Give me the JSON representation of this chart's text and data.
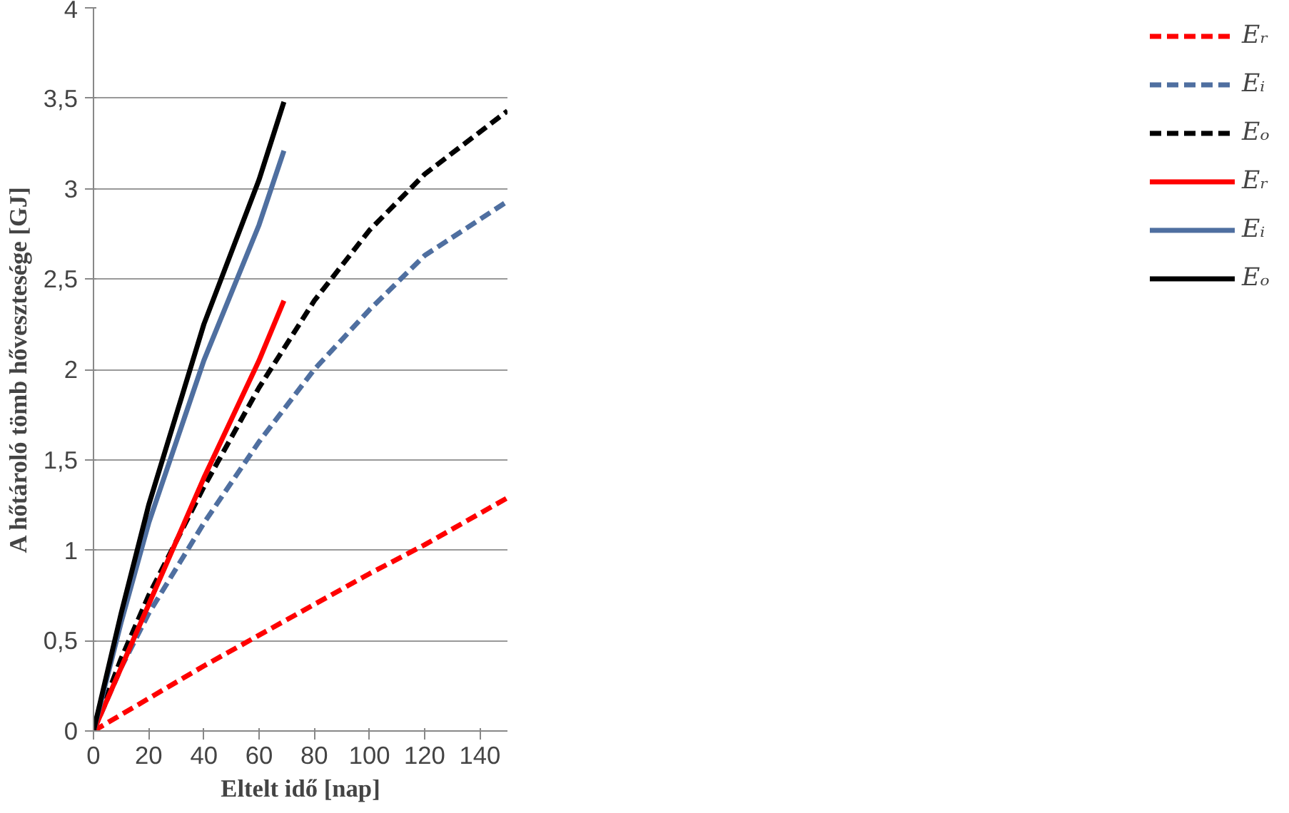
{
  "chart_data": {
    "type": "line",
    "xlabel": "Eltelt idő [nap]",
    "ylabel": "A hőtároló tömb hővesztesége [GJ]",
    "xlim": [
      0,
      150
    ],
    "xticks": [
      0,
      20,
      40,
      60,
      80,
      100,
      120,
      140
    ],
    "ylim": [
      0,
      4
    ],
    "yticks": [
      0,
      {
        "value": 0.5,
        "label": "0,5"
      },
      1,
      {
        "value": 1.5,
        "label": "1,5"
      },
      2,
      {
        "value": 2.5,
        "label": "2,5"
      },
      3,
      {
        "value": 3.5,
        "label": "3,5"
      },
      4
    ],
    "grid": "y",
    "legend": "right",
    "marker": "none",
    "series": [
      {
        "name": "Eᵣ",
        "color": "#ff0000",
        "line_style": "dashed",
        "x": [
          0,
          20,
          40,
          60,
          80,
          100,
          120,
          150
        ],
        "values": [
          0,
          0.18,
          0.36,
          0.53,
          0.7,
          0.87,
          1.03,
          1.29
        ]
      },
      {
        "name": "Eᵢ",
        "color": "#4f6fa0",
        "line_style": "dashed",
        "x": [
          0,
          10,
          20,
          40,
          60,
          80,
          100,
          120,
          150
        ],
        "values": [
          0,
          0.35,
          0.65,
          1.15,
          1.6,
          2.0,
          2.33,
          2.63,
          2.93
        ]
      },
      {
        "name": "Eₒ",
        "color": "#000000",
        "line_style": "dashed",
        "x": [
          0,
          10,
          20,
          40,
          60,
          80,
          100,
          120,
          150
        ],
        "values": [
          0,
          0.4,
          0.75,
          1.35,
          1.9,
          2.38,
          2.77,
          3.08,
          3.43
        ]
      },
      {
        "name": "Eᵣ",
        "color": "#ff0000",
        "line_style": "solid",
        "x": [
          0,
          20,
          40,
          60,
          69
        ],
        "values": [
          0,
          0.7,
          1.4,
          2.05,
          2.38
        ]
      },
      {
        "name": "Eᵢ",
        "color": "#4f6fa0",
        "line_style": "solid",
        "x": [
          0,
          10,
          20,
          40,
          60,
          69
        ],
        "values": [
          0,
          0.6,
          1.15,
          2.05,
          2.8,
          3.21
        ]
      },
      {
        "name": "Eₒ",
        "color": "#000000",
        "line_style": "solid",
        "x": [
          0,
          10,
          20,
          40,
          60,
          69
        ],
        "values": [
          0,
          0.65,
          1.25,
          2.25,
          3.05,
          3.48
        ]
      }
    ]
  }
}
